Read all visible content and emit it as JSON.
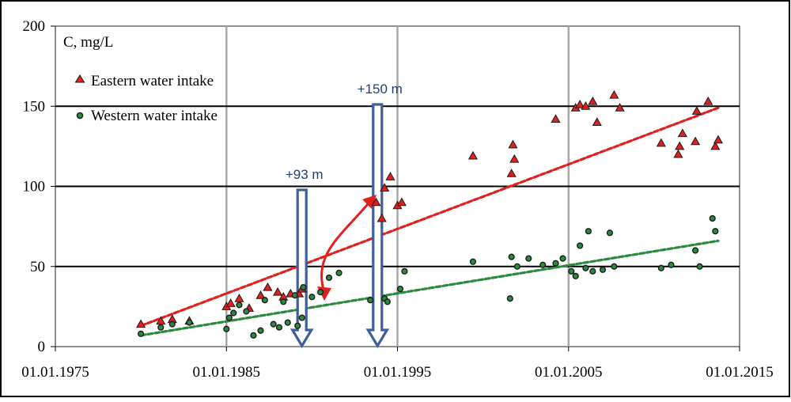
{
  "chart_data": {
    "type": "scatter",
    "ylabel": "C, mg/L",
    "x_axis": {
      "type": "date",
      "min": "1975-01-01",
      "max": "2015-01-01",
      "ticks": [
        {
          "date": "1975-01-01",
          "label": "01.01.1975"
        },
        {
          "date": "1985-01-01",
          "label": "01.01.1985"
        },
        {
          "date": "1995-01-01",
          "label": "01.01.1995"
        },
        {
          "date": "2005-01-01",
          "label": "01.01.2005"
        },
        {
          "date": "2015-01-01",
          "label": "01.01.2015"
        }
      ]
    },
    "y_axis": {
      "min": 0,
      "max": 200,
      "ticks": [
        0,
        50,
        100,
        150,
        200
      ]
    },
    "grid": true,
    "legend_position": "top-left",
    "series": [
      {
        "name": "Eastern water intake",
        "marker": "triangle",
        "color": "#e0201e",
        "trend": {
          "from": [
            "1980-01-01",
            13
          ],
          "to": [
            "2013-10-01",
            149
          ]
        },
        "points": [
          [
            "1980-01-01",
            14
          ],
          [
            "1981-03-01",
            16
          ],
          [
            "1981-11-01",
            17
          ],
          [
            "1982-11-01",
            16
          ],
          [
            "1985-01-01",
            25
          ],
          [
            "1985-04-01",
            27
          ],
          [
            "1985-10-01",
            30
          ],
          [
            "1986-05-01",
            24
          ],
          [
            "1987-01-01",
            32
          ],
          [
            "1987-06-01",
            37
          ],
          [
            "1988-01-01",
            34
          ],
          [
            "1988-05-01",
            31
          ],
          [
            "1988-10-01",
            33
          ],
          [
            "1989-04-01",
            33
          ],
          [
            "1989-06-01",
            36
          ],
          [
            "1993-10-01",
            90
          ],
          [
            "1994-02-01",
            80
          ],
          [
            "1994-04-01",
            99
          ],
          [
            "1994-08-01",
            106
          ],
          [
            "1995-01-01",
            88
          ],
          [
            "1995-04-01",
            90
          ],
          [
            "1999-06-01",
            119
          ],
          [
            "2001-09-01",
            108
          ],
          [
            "2001-10-01",
            126
          ],
          [
            "2001-11-01",
            117
          ],
          [
            "2004-04-01",
            142
          ],
          [
            "2005-06-01",
            149
          ],
          [
            "2005-09-01",
            151
          ],
          [
            "2006-01-01",
            150
          ],
          [
            "2006-06-01",
            153
          ],
          [
            "2006-09-01",
            140
          ],
          [
            "2007-09-01",
            157
          ],
          [
            "2008-01-01",
            149
          ],
          [
            "2010-06-01",
            127
          ],
          [
            "2011-06-01",
            120
          ],
          [
            "2011-07-01",
            125
          ],
          [
            "2011-09-01",
            133
          ],
          [
            "2012-06-01",
            128
          ],
          [
            "2012-07-01",
            147
          ],
          [
            "2013-03-01",
            153
          ],
          [
            "2013-08-01",
            125
          ],
          [
            "2013-10-01",
            129
          ]
        ]
      },
      {
        "name": "Western water intake",
        "marker": "circle",
        "color": "#2a8a3e",
        "trend": {
          "from": [
            "1980-01-01",
            7
          ],
          "to": [
            "2013-10-01",
            66
          ]
        },
        "points": [
          [
            "1980-01-01",
            8
          ],
          [
            "1981-03-01",
            12
          ],
          [
            "1981-11-01",
            14
          ],
          [
            "1982-11-01",
            15
          ],
          [
            "1985-01-01",
            11
          ],
          [
            "1985-03-01",
            18
          ],
          [
            "1985-06-01",
            21
          ],
          [
            "1985-10-01",
            26
          ],
          [
            "1986-03-01",
            22
          ],
          [
            "1986-08-01",
            7
          ],
          [
            "1987-01-01",
            10
          ],
          [
            "1987-04-01",
            29
          ],
          [
            "1987-10-01",
            14
          ],
          [
            "1988-02-01",
            12
          ],
          [
            "1988-05-01",
            28
          ],
          [
            "1988-08-01",
            15
          ],
          [
            "1989-01-01",
            32
          ],
          [
            "1989-03-01",
            13
          ],
          [
            "1989-06-01",
            18
          ],
          [
            "1989-07-01",
            37
          ],
          [
            "1990-01-01",
            31
          ],
          [
            "1990-07-01",
            34
          ],
          [
            "1991-01-01",
            43
          ],
          [
            "1991-08-01",
            46
          ],
          [
            "1993-06-01",
            29
          ],
          [
            "1994-04-01",
            30
          ],
          [
            "1994-06-01",
            28
          ],
          [
            "1995-03-01",
            36
          ],
          [
            "1995-06-01",
            47
          ],
          [
            "1999-06-01",
            53
          ],
          [
            "2001-08-01",
            30
          ],
          [
            "2001-09-01",
            56
          ],
          [
            "2002-01-01",
            50
          ],
          [
            "2002-09-01",
            55
          ],
          [
            "2003-07-01",
            51
          ],
          [
            "2004-04-01",
            52
          ],
          [
            "2004-09-01",
            55
          ],
          [
            "2005-03-01",
            47
          ],
          [
            "2005-06-01",
            44
          ],
          [
            "2005-09-01",
            63
          ],
          [
            "2006-01-01",
            49
          ],
          [
            "2006-03-01",
            72
          ],
          [
            "2006-06-01",
            47
          ],
          [
            "2007-01-01",
            48
          ],
          [
            "2007-06-01",
            71
          ],
          [
            "2007-09-01",
            50
          ],
          [
            "2010-06-01",
            49
          ],
          [
            "2011-01-01",
            51
          ],
          [
            "2012-06-01",
            60
          ],
          [
            "2012-09-01",
            50
          ],
          [
            "2013-06-01",
            80
          ],
          [
            "2013-08-01",
            72
          ]
        ]
      }
    ],
    "annotations": [
      {
        "label": "+93 m",
        "date": "1989-06-01"
      },
      {
        "label": "+150 m",
        "date": "1993-11-01"
      }
    ]
  },
  "style": {
    "frame_color": "#000000",
    "grid_color_vertical": "#a6a6a6",
    "grid_color_horizontal": "#000000",
    "arrow_fill": "#ffffff",
    "arrow_stroke": "#3f5f9a",
    "callout_color": "#1f3d6e",
    "connector_color": "#e0201e"
  }
}
